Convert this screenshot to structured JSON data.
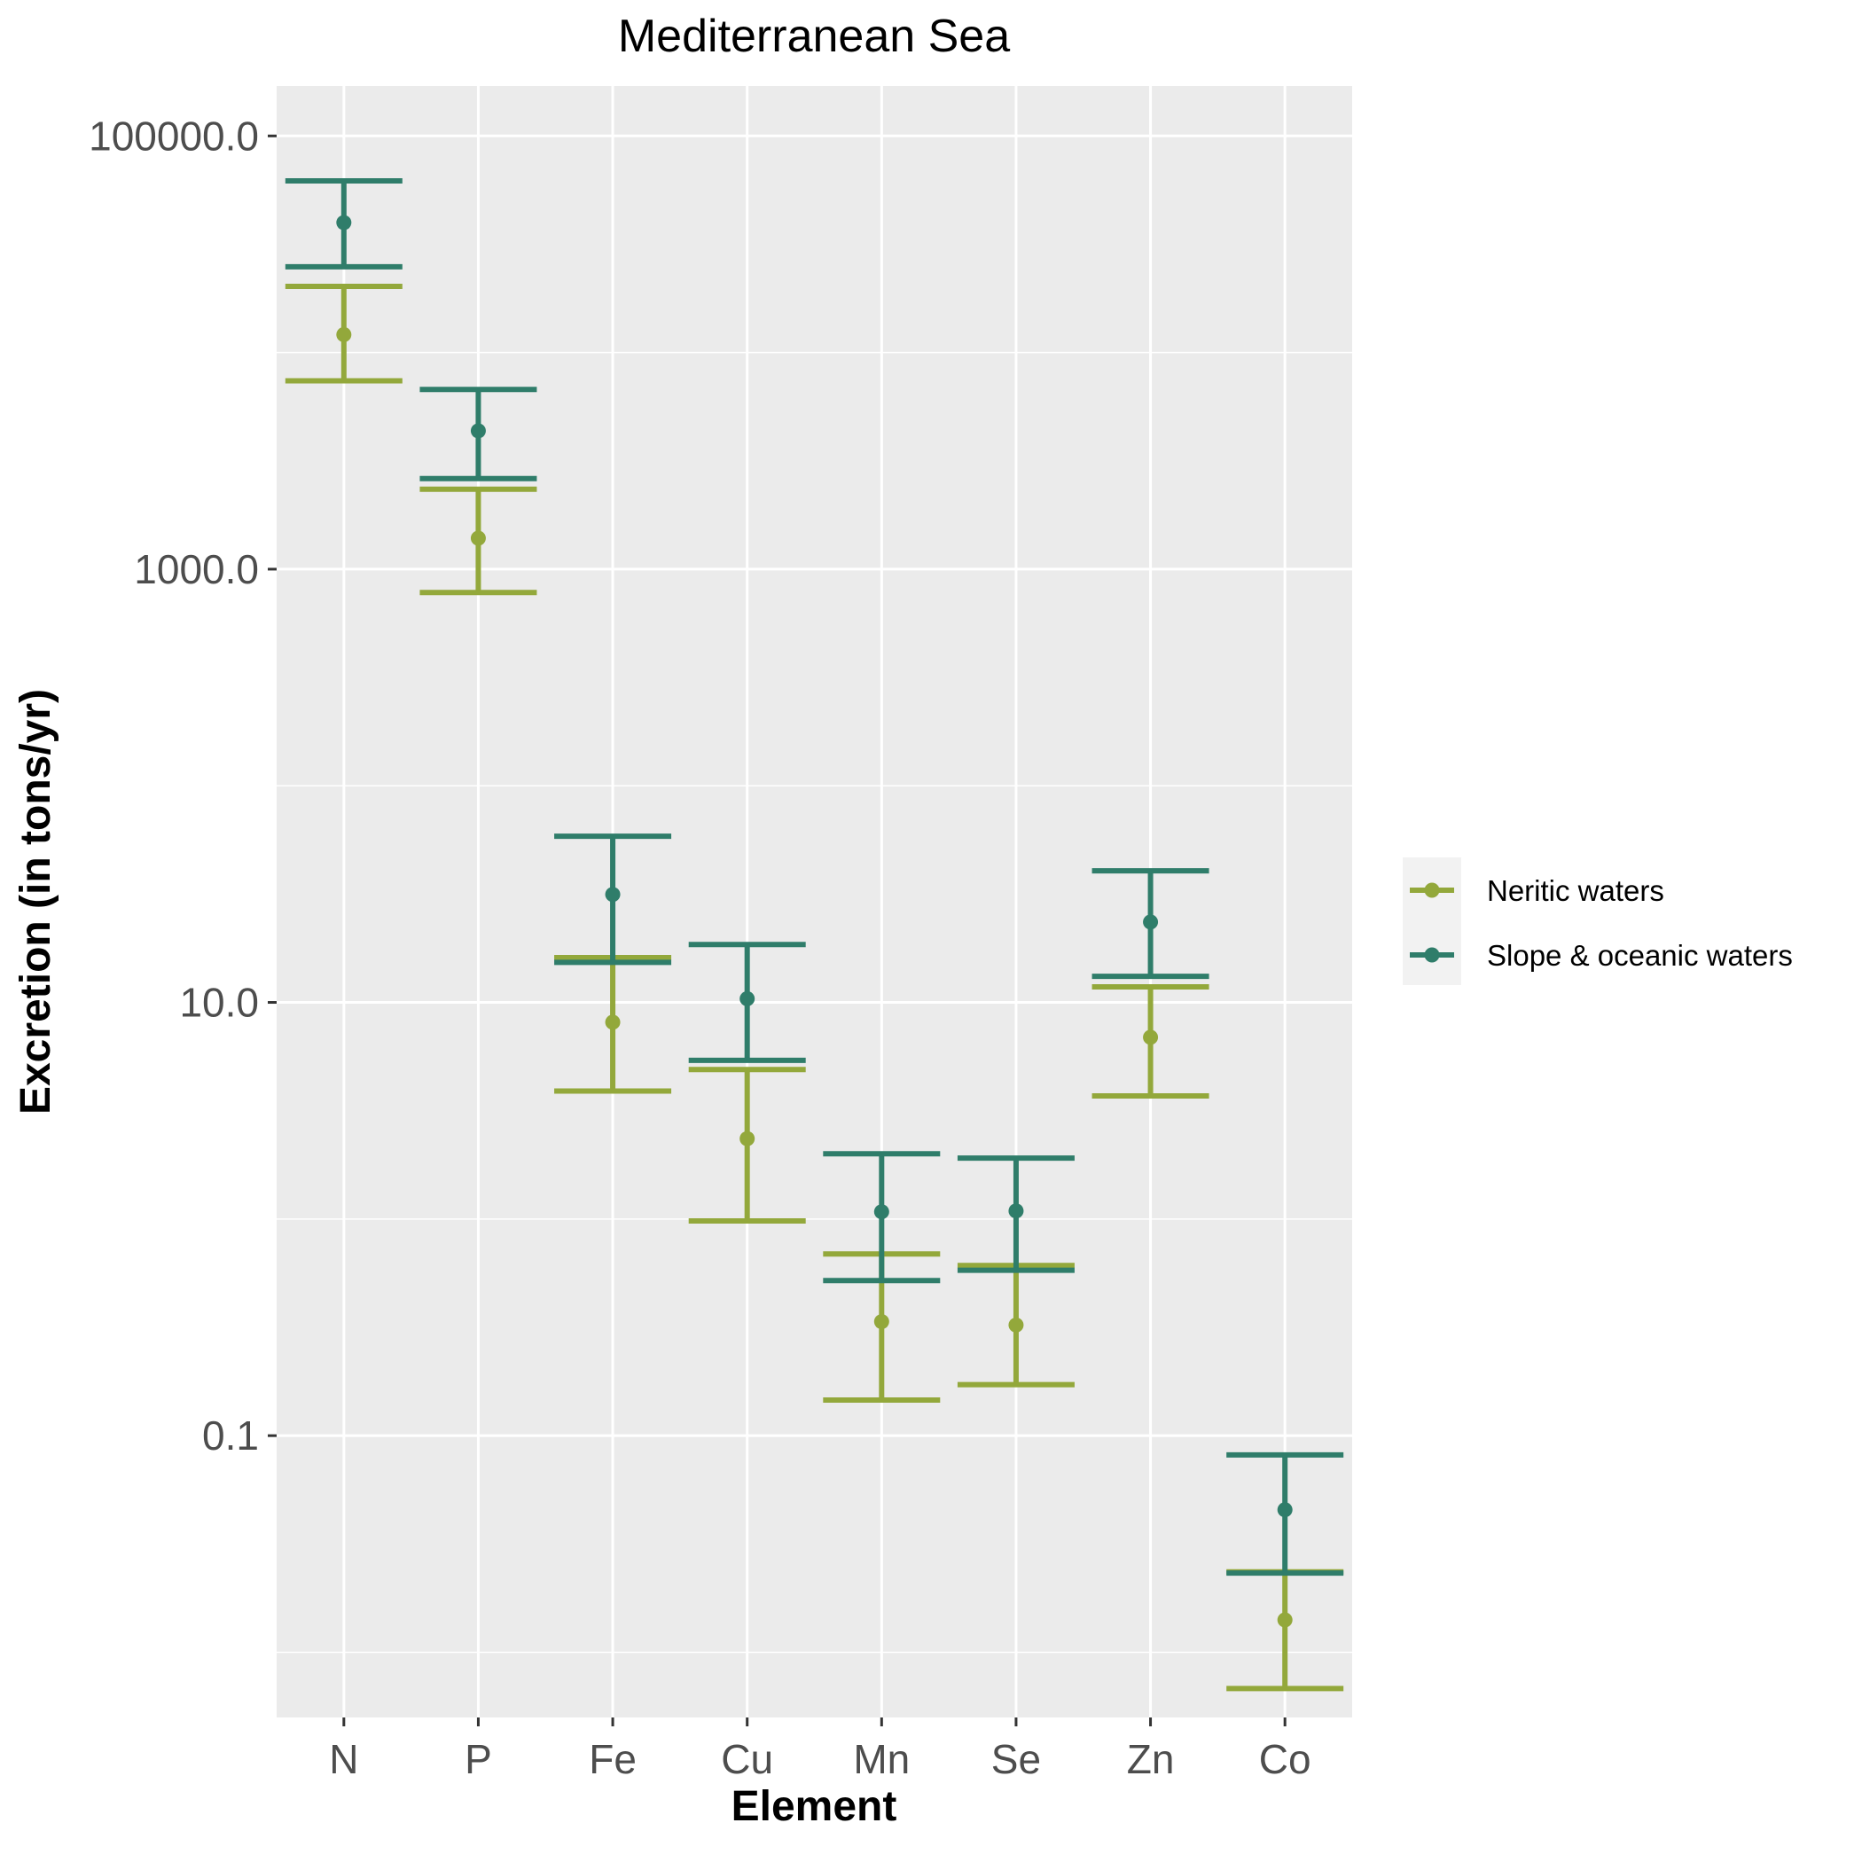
{
  "chart_data": {
    "type": "errorbar",
    "title": "Mediterranean Sea",
    "xlabel": "Element",
    "ylabel": "Excretion (in tons/yr)",
    "y_scale": "log10",
    "ylim": [
      0.005,
      170000
    ],
    "y_ticks": [
      {
        "value": 0.1,
        "label": "0.1"
      },
      {
        "value": 10,
        "label": "10.0"
      },
      {
        "value": 1000,
        "label": "1000.0"
      },
      {
        "value": 100000,
        "label": "100000.0"
      }
    ],
    "y_minor_gridlines": [
      1,
      100,
      10000,
      0.01
    ],
    "categories": [
      "N",
      "P",
      "Fe",
      "Cu",
      "Mn",
      "Se",
      "Zn",
      "Co"
    ],
    "grid": true,
    "legend_position": "right",
    "colors": {
      "panel": "#ebebeb",
      "grid": "#ffffff",
      "Neritic waters": "#93a83b",
      "Slope & oceanic waters": "#2f7d6a"
    },
    "series": [
      {
        "name": "Neritic waters",
        "values": [
          12100,
          1390,
          8.1,
          2.35,
          0.336,
          0.324,
          6.9,
          0.0141
        ],
        "lower": [
          7400,
          780,
          3.9,
          0.98,
          0.146,
          0.172,
          3.7,
          0.0068
        ],
        "upper": [
          20200,
          2340,
          16.1,
          4.9,
          0.69,
          0.61,
          11.8,
          0.0235
        ]
      },
      {
        "name": "Slope & oceanic waters",
        "values": [
          39800,
          4350,
          31.5,
          10.4,
          1.08,
          1.09,
          23.5,
          0.0455
        ],
        "lower": [
          24900,
          2620,
          15.3,
          5.4,
          0.52,
          0.58,
          13.2,
          0.0232
        ],
        "upper": [
          62000,
          6750,
          58.5,
          18.5,
          2.0,
          1.91,
          40.5,
          0.0815
        ]
      }
    ]
  }
}
